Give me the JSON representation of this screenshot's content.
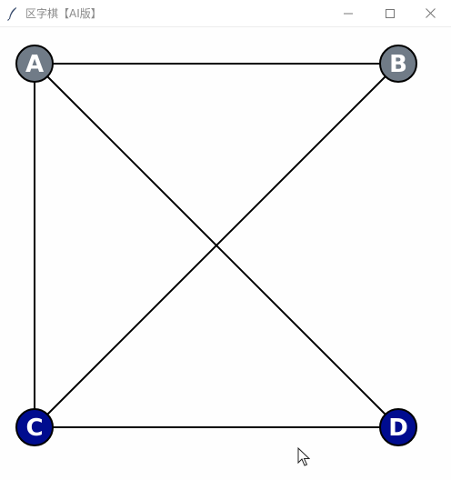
{
  "window": {
    "title": "区字棋【AI版】",
    "icon": "feather-icon",
    "controls": [
      "minimize-icon",
      "maximize-icon",
      "close-icon"
    ]
  },
  "board": {
    "nodes": [
      {
        "id": "A",
        "label": "A",
        "owner": "player-gray",
        "color": "#707b87"
      },
      {
        "id": "B",
        "label": "B",
        "owner": "player-gray",
        "color": "#707b87"
      },
      {
        "id": "C",
        "label": "C",
        "owner": "player-blue",
        "color": "#000c8f"
      },
      {
        "id": "D",
        "label": "D",
        "owner": "player-blue",
        "color": "#000c8f"
      }
    ],
    "edges": [
      [
        "A",
        "B"
      ],
      [
        "A",
        "C"
      ],
      [
        "A",
        "D"
      ],
      [
        "B",
        "C"
      ],
      [
        "C",
        "D"
      ]
    ],
    "colors": {
      "line": "#000000",
      "background": "#fefefe",
      "label": "#ffffff"
    }
  }
}
